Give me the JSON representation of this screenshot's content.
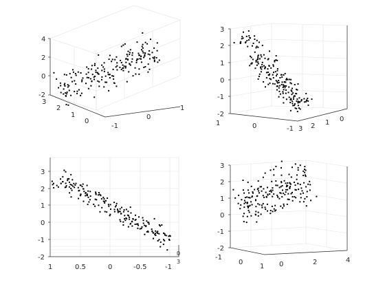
{
  "figure": {
    "background": "#ffffff",
    "axis_color": "#262626",
    "grid_color": "#e3e3e3",
    "marker_color": "#000000"
  },
  "chart_data": [
    {
      "type": "scatter",
      "view": "isometric",
      "xlim": [
        -1,
        1
      ],
      "ylim": [
        0,
        3
      ],
      "zlim": [
        -2,
        4
      ],
      "x_ticks": [
        "-1",
        "0",
        "1"
      ],
      "y_ticks": [
        "0",
        "1",
        "2",
        "3"
      ],
      "z_ticks": [
        "-2",
        "0",
        "2",
        "4"
      ],
      "grid": true,
      "point_count": 200
    },
    {
      "type": "scatter",
      "view": "rotated",
      "xlim": [
        -1,
        1
      ],
      "ylim": [
        0,
        3
      ],
      "zlim": [
        -2,
        3
      ],
      "x_ticks": [
        "1",
        "0",
        "-1"
      ],
      "y_ticks": [
        "3",
        "2",
        "1",
        "0"
      ],
      "z_ticks": [
        "-2",
        "-1",
        "0",
        "1",
        "2",
        "3"
      ],
      "grid": true,
      "point_count": 200
    },
    {
      "type": "scatter",
      "view": "x-z projection",
      "xlim": [
        -1,
        1
      ],
      "zlim": [
        -2,
        3
      ],
      "x_ticks": [
        "1",
        "0.5",
        "0",
        "-0.5",
        "-1"
      ],
      "z_ticks": [
        "-2",
        "-1",
        "0",
        "1",
        "2",
        "3"
      ],
      "edge_ticks": [
        "0",
        "3"
      ],
      "grid": true,
      "point_count": 200
    },
    {
      "type": "scatter",
      "view": "rotated",
      "xlim": [
        -1,
        1
      ],
      "ylim": [
        0,
        4
      ],
      "zlim": [
        -2,
        3
      ],
      "x_ticks": [
        "-1",
        "0",
        "1"
      ],
      "y_ticks": [
        "0",
        "2",
        "4"
      ],
      "z_ticks": [
        "-2",
        "-1",
        "0",
        "1",
        "2",
        "3"
      ],
      "grid": true,
      "point_count": 200
    }
  ]
}
